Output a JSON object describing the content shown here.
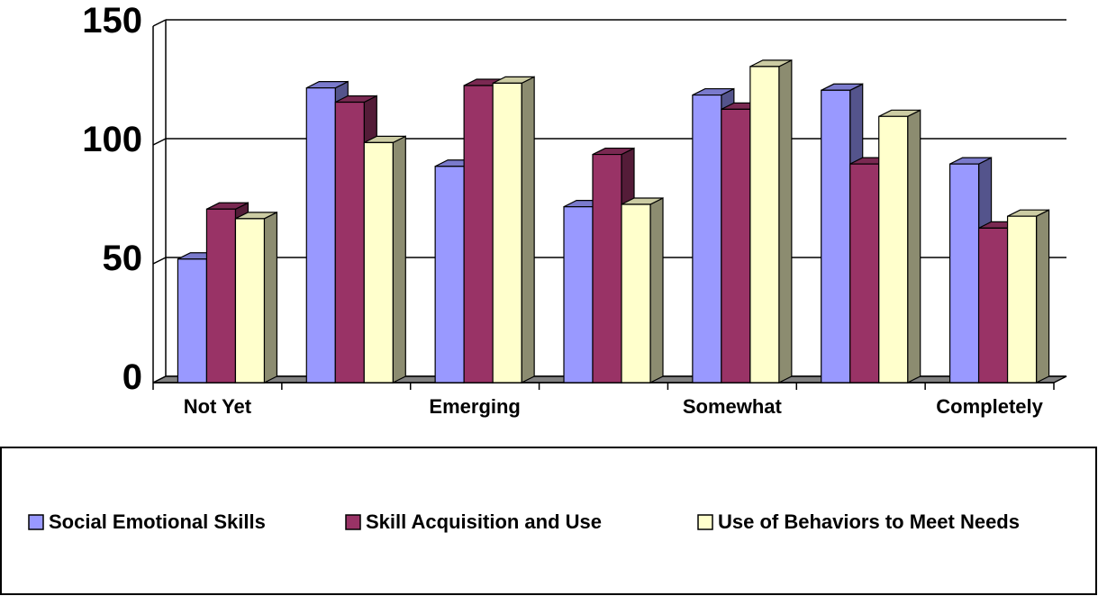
{
  "chart_data": {
    "type": "bar3d",
    "categories": [
      "Not Yet",
      null,
      "Emerging",
      null,
      "Somewhat",
      null,
      "Completely"
    ],
    "series": [
      {
        "name": "Social Emotional Skills",
        "color": "#9999ff",
        "values": [
          52,
          124,
          91,
          74,
          121,
          123,
          92
        ]
      },
      {
        "name": "Skill Acquisition and Use",
        "color": "#993366",
        "values": [
          73,
          118,
          125,
          96,
          115,
          92,
          65
        ]
      },
      {
        "name": "Use of Behaviors to Meet Needs",
        "color": "#ffffcc",
        "values": [
          69,
          101,
          126,
          75,
          133,
          112,
          70
        ]
      }
    ],
    "ylim": [
      0,
      150
    ],
    "yticks": [
      0,
      50,
      100,
      150
    ],
    "grid": true,
    "legend": "bottom"
  }
}
